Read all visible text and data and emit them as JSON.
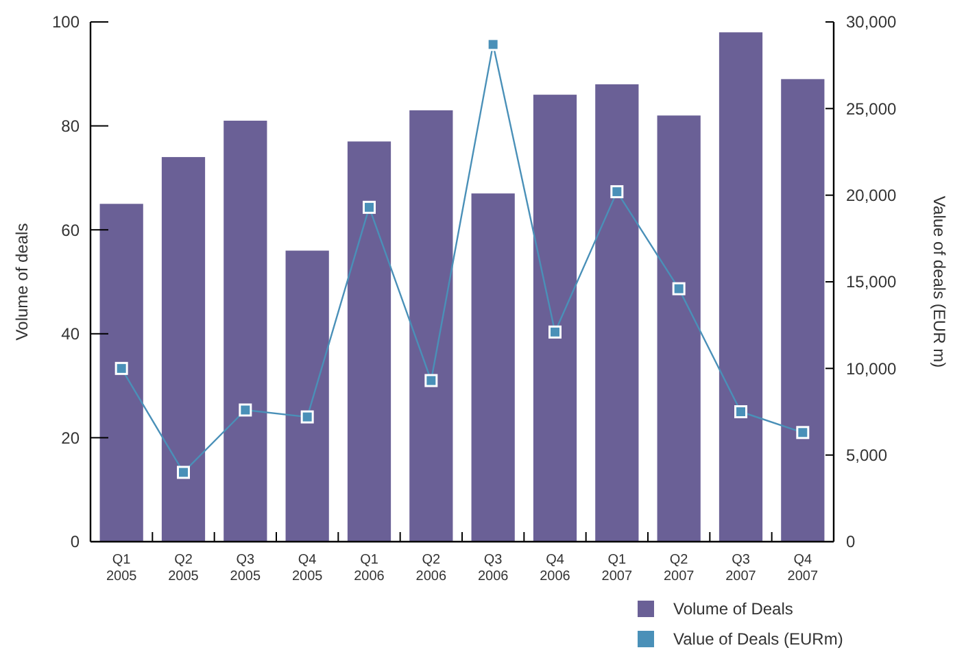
{
  "chart_data": {
    "type": "bar",
    "categories": [
      "Q1 2005",
      "Q2 2005",
      "Q3 2005",
      "Q4 2005",
      "Q1 2006",
      "Q2 2006",
      "Q3 2006",
      "Q4 2006",
      "Q1 2007",
      "Q2 2007",
      "Q3 2007",
      "Q4 2007"
    ],
    "ylabel": "Volume of deals",
    "y2label": "Value of deals (EUR m)",
    "ylim": [
      0,
      100
    ],
    "yticks": [
      0,
      20,
      40,
      60,
      80,
      100
    ],
    "y2lim": [
      0,
      30000
    ],
    "y2ticks": [
      {
        "value": 0,
        "label": "0"
      },
      {
        "value": 5000,
        "label": "5,000"
      },
      {
        "value": 10000,
        "label": "10,000"
      },
      {
        "value": 15000,
        "label": "15,000"
      },
      {
        "value": 20000,
        "label": "20,000"
      },
      {
        "value": 25000,
        "label": "25,000"
      },
      {
        "value": 30000,
        "label": "30,000"
      }
    ],
    "series": [
      {
        "name": "Volume of Deals",
        "color": "#6a6096",
        "values": [
          65,
          74,
          81,
          56,
          77,
          83,
          67,
          86,
          88,
          82,
          98,
          89
        ]
      },
      {
        "name": "Value of Deals (EURm)",
        "type": "line",
        "axis": "y2",
        "color": "#4a90b8",
        "marker": "square",
        "values": [
          10000,
          4000,
          7600,
          7200,
          19300,
          9300,
          28700,
          12100,
          20200,
          14600,
          7500,
          6300
        ]
      }
    ],
    "grid": false,
    "legend": "bottom right"
  }
}
